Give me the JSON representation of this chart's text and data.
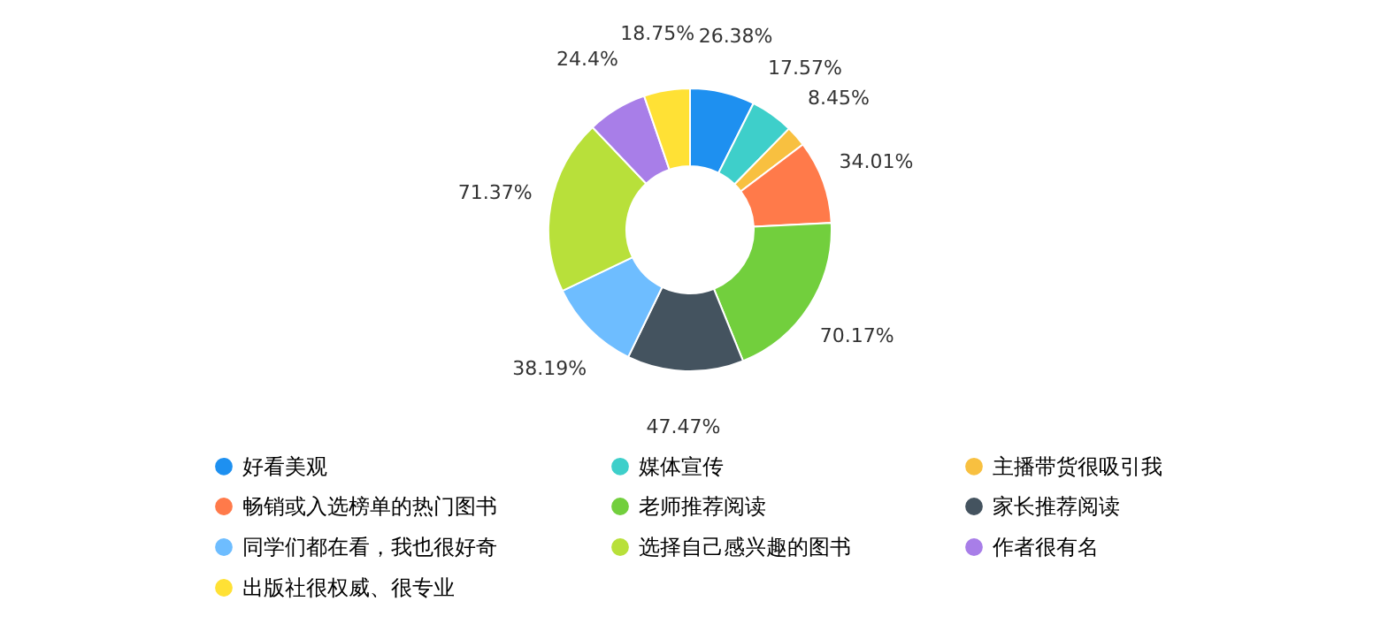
{
  "chart_data": {
    "type": "donut",
    "categories": [
      "好看美观",
      "媒体宣传",
      "主播带货很吸引我",
      "畅销或入选榜单的热门图书",
      "老师推荐阅读",
      "家长推荐阅读",
      "同学们都在看，我也很好奇",
      "选择自己感兴趣的图书",
      "作者很有名",
      "出版社很权威、很专业"
    ],
    "values": [
      26.38,
      17.57,
      8.45,
      34.01,
      70.17,
      47.47,
      38.19,
      71.37,
      24.4,
      18.75
    ],
    "colors": [
      "#1e90f0",
      "#3ecfca",
      "#f8c040",
      "#ff7a4a",
      "#72cf3d",
      "#44535f",
      "#6ebdff",
      "#b8e03a",
      "#a87ee8",
      "#ffe135"
    ],
    "value_labels": [
      "26.38%",
      "17.57%",
      "8.45%",
      "34.01%",
      "70.17%",
      "47.47%",
      "38.19%",
      "71.37%",
      "24.4%",
      "18.75%"
    ],
    "legend": "bottom"
  }
}
